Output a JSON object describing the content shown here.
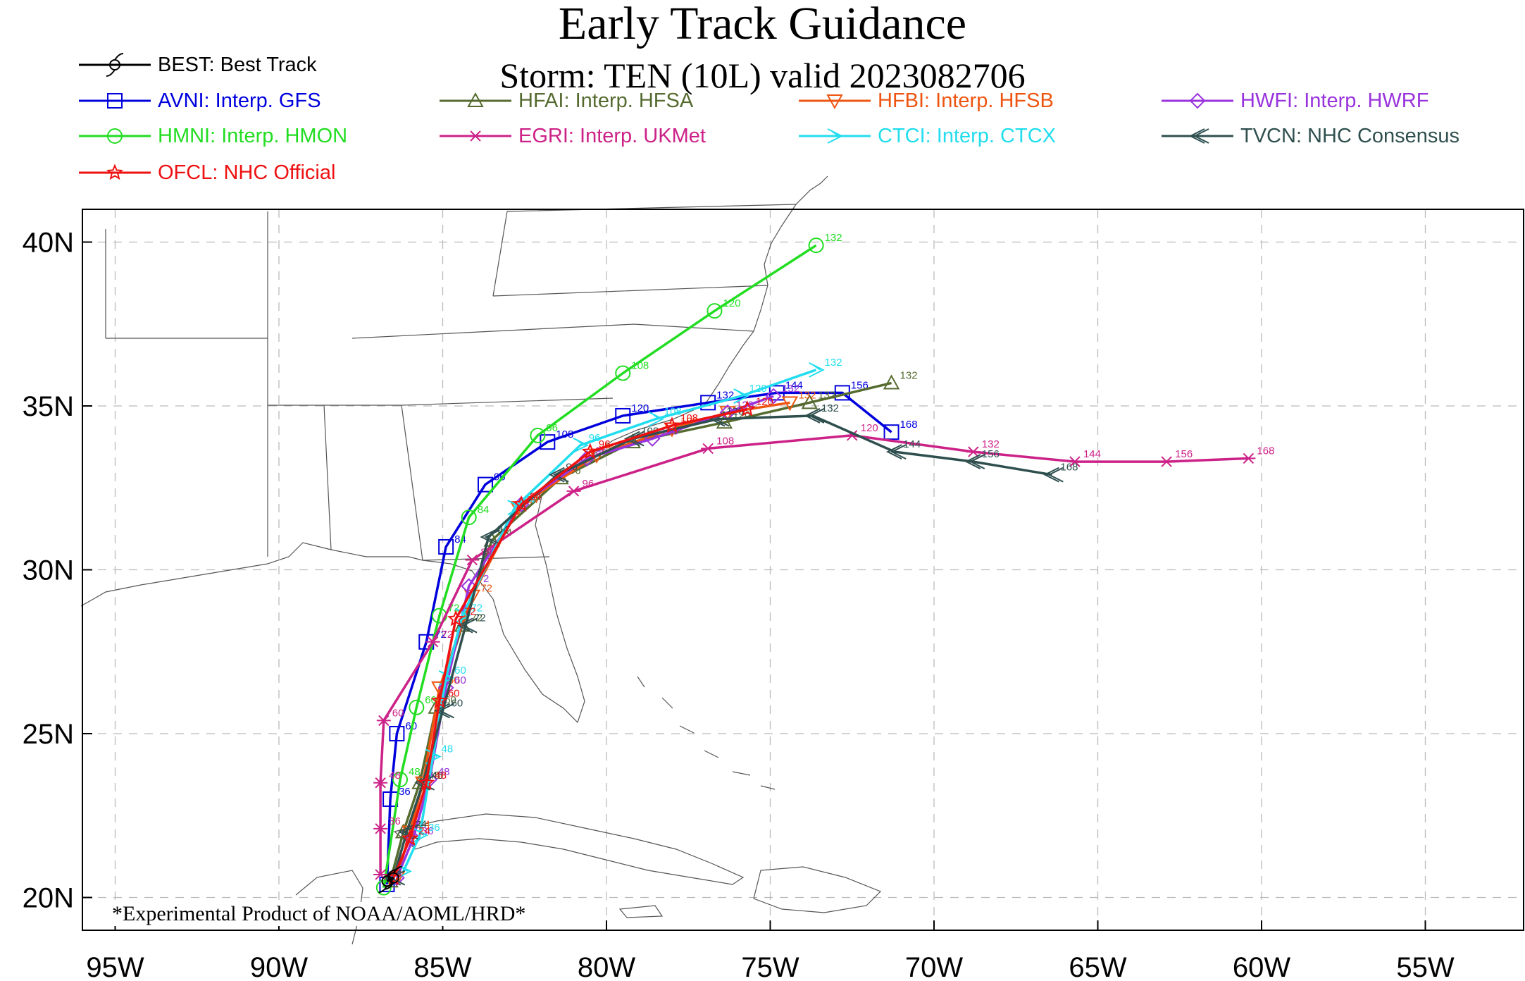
{
  "title": "Early Track Guidance",
  "subtitle": "Storm: TEN (10L) valid 2023082706",
  "footnote": "*Experimental Product of NOAA/AOML/HRD*",
  "axes": {
    "lon_ticks": [
      "95W",
      "90W",
      "85W",
      "80W",
      "75W",
      "70W",
      "65W",
      "60W",
      "55W"
    ],
    "lat_ticks": [
      "40N",
      "35N",
      "30N",
      "25N",
      "20N"
    ]
  },
  "legend": [
    {
      "label": "BEST: Best Track",
      "color": "#000000",
      "marker": "hurricane"
    },
    {
      "label": "AVNI: Interp. GFS",
      "color": "#0000dd",
      "marker": "square"
    },
    {
      "label": "HFAI: Interp. HFSA",
      "color": "#556b2f",
      "marker": "triangle"
    },
    {
      "label": "HFBI: Interp. HFSB",
      "color": "#ee5511",
      "marker": "triangle-down"
    },
    {
      "label": "HWFI: Interp. HWRF",
      "color": "#9933dd",
      "marker": "diamond"
    },
    {
      "label": "HMNI: Interp. HMON",
      "color": "#22dd22",
      "marker": "circle"
    },
    {
      "label": "EGRI: Interp. UKMet",
      "color": "#cc2288",
      "marker": "asterisk"
    },
    {
      "label": "CTCI: Interp. CTCX",
      "color": "#22ddee",
      "marker": "arrow"
    },
    {
      "label": "TVCN: NHC Consensus",
      "color": "#2f4f4f",
      "marker": "double-arrow"
    },
    {
      "label": "OFCL: NHC Official",
      "color": "#ee1111",
      "marker": "star"
    }
  ],
  "chart_data": {
    "type": "line",
    "xlim": [
      -96,
      -52
    ],
    "ylim": [
      19,
      41
    ],
    "x_units": "degrees longitude",
    "y_units": "degrees latitude",
    "grid": true,
    "legend_placement": "top",
    "series": [
      {
        "name": "AVNI",
        "points": [
          [
            -86.7,
            20.4,
            0
          ],
          [
            -86.6,
            23,
            36
          ],
          [
            -86.4,
            25,
            60
          ],
          [
            -85.5,
            27.8,
            72
          ],
          [
            -84.9,
            30.7,
            84
          ],
          [
            -83.7,
            32.6,
            96
          ],
          [
            -81.8,
            33.9,
            108
          ],
          [
            -79.5,
            34.7,
            120
          ],
          [
            -76.9,
            35.1,
            132
          ],
          [
            -74.8,
            35.4,
            144
          ],
          [
            -72.8,
            35.4,
            156
          ],
          [
            -71.3,
            34.2,
            168
          ]
        ]
      },
      {
        "name": "HFAI",
        "points": [
          [
            -86.6,
            20.5,
            0
          ],
          [
            -86.2,
            22,
            24
          ],
          [
            -85.7,
            23.5,
            48
          ],
          [
            -85.2,
            25.8,
            60
          ],
          [
            -84.4,
            28.3,
            72
          ],
          [
            -83.5,
            30.9,
            84
          ],
          [
            -81.4,
            32.8,
            96
          ],
          [
            -79.2,
            33.9,
            108
          ],
          [
            -76.4,
            34.5,
            120
          ],
          [
            -73.8,
            35.1,
            132
          ],
          [
            -71.3,
            35.7,
            132
          ]
        ]
      },
      {
        "name": "HFBI",
        "points": [
          [
            -86.4,
            20.6,
            0
          ],
          [
            -86,
            22,
            24
          ],
          [
            -85.6,
            23.5,
            48
          ],
          [
            -85.1,
            26.4,
            60
          ],
          [
            -84.1,
            29.2,
            72
          ],
          [
            -82.7,
            31.9,
            84
          ],
          [
            -80.3,
            33.5,
            96
          ],
          [
            -78,
            34.3,
            108
          ],
          [
            -76.3,
            34.8,
            120
          ],
          [
            -74.4,
            35.1,
            132
          ]
        ]
      },
      {
        "name": "HWFI",
        "points": [
          [
            -86.4,
            20.6,
            0
          ],
          [
            -85.9,
            21.8,
            36
          ],
          [
            -85.4,
            23.6,
            48
          ],
          [
            -84.9,
            26.4,
            60
          ],
          [
            -84.2,
            29.5,
            72
          ],
          [
            -82.6,
            32,
            84
          ],
          [
            -80.6,
            33.4,
            96
          ],
          [
            -78.6,
            34,
            108
          ],
          [
            -76.3,
            34.8,
            120
          ],
          [
            -74.9,
            35.3,
            132
          ]
        ]
      },
      {
        "name": "HMNI",
        "points": [
          [
            -86.8,
            20.3,
            0
          ],
          [
            -86.3,
            23.6,
            48
          ],
          [
            -85.8,
            25.8,
            60
          ],
          [
            -85.1,
            28.6,
            72
          ],
          [
            -84.2,
            31.6,
            84
          ],
          [
            -82.1,
            34.1,
            96
          ],
          [
            -79.5,
            36,
            108
          ],
          [
            -76.7,
            37.9,
            120
          ],
          [
            -73.6,
            39.9,
            132
          ]
        ]
      },
      {
        "name": "EGRI",
        "points": [
          [
            -86.9,
            20.7,
            0
          ],
          [
            -86.9,
            22.1,
            36
          ],
          [
            -86.9,
            23.5,
            48
          ],
          [
            -86.8,
            25.4,
            60
          ],
          [
            -85.3,
            27.8,
            72
          ],
          [
            -84.1,
            30.3,
            84
          ],
          [
            -81,
            32.4,
            96
          ],
          [
            -76.9,
            33.7,
            108
          ],
          [
            -72.5,
            34.1,
            120
          ],
          [
            -68.8,
            33.6,
            132
          ],
          [
            -65.7,
            33.3,
            144
          ],
          [
            -62.9,
            33.3,
            156
          ],
          [
            -60.4,
            33.4,
            168
          ]
        ]
      },
      {
        "name": "CTCI",
        "points": [
          [
            -86.2,
            20.8,
            0
          ],
          [
            -85.7,
            21.9,
            36
          ],
          [
            -85.3,
            24.3,
            48
          ],
          [
            -84.9,
            26.7,
            60
          ],
          [
            -84.4,
            28.6,
            72
          ],
          [
            -82.8,
            31.9,
            84
          ],
          [
            -80.8,
            33.8,
            96
          ],
          [
            -78.5,
            34.6,
            108
          ],
          [
            -75.9,
            35.3,
            120
          ],
          [
            -73.6,
            36.1,
            132
          ]
        ]
      },
      {
        "name": "TVCN",
        "points": [
          [
            -86.5,
            20.6,
            0
          ],
          [
            -86.1,
            22,
            24
          ],
          [
            -85.6,
            23.5,
            48
          ],
          [
            -85,
            25.7,
            60
          ],
          [
            -84.3,
            28.3,
            72
          ],
          [
            -83.6,
            31,
            84
          ],
          [
            -81.5,
            32.9,
            96
          ],
          [
            -79.2,
            34,
            108
          ],
          [
            -76.6,
            34.6,
            120
          ],
          [
            -73.7,
            34.7,
            132
          ],
          [
            -71.2,
            33.6,
            144
          ],
          [
            -68.8,
            33.3,
            156
          ],
          [
            -66.4,
            32.9,
            168
          ]
        ]
      },
      {
        "name": "OFCL",
        "points": [
          [
            -86.5,
            20.6,
            0
          ],
          [
            -86,
            21.8,
            24
          ],
          [
            -85.5,
            23.5,
            48
          ],
          [
            -85.1,
            26,
            60
          ],
          [
            -84.6,
            28.5,
            72
          ],
          [
            -82.6,
            32,
            84
          ],
          [
            -80.5,
            33.6,
            96
          ],
          [
            -78,
            34.4,
            108
          ],
          [
            -75.7,
            34.9,
            120
          ]
        ]
      },
      {
        "name": "BEST",
        "points": [
          [
            -86.7,
            20.5,
            0
          ],
          [
            -86.5,
            20.6,
            0
          ]
        ]
      }
    ]
  }
}
